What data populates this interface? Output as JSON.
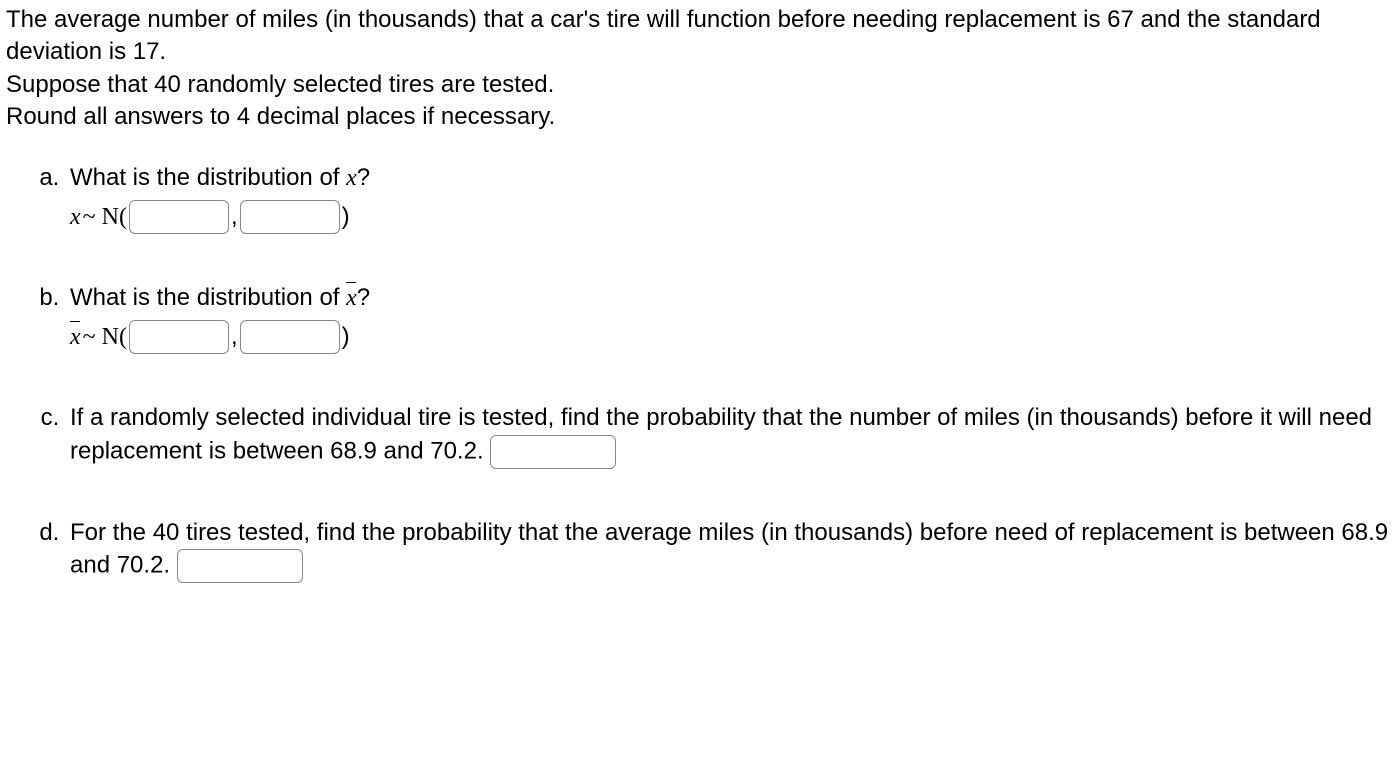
{
  "intro": {
    "line1": "The average number of miles (in thousands) that a car's tire will function before needing replacement is 67 and the standard deviation is 17.",
    "line2": "Suppose that 40 randomly selected tires are tested.",
    "line3": "Round all answers to 4 decimal places if necessary."
  },
  "questions": {
    "a": {
      "prompt_pre": "What is the distribution of ",
      "var": "x",
      "prompt_post": "?",
      "dist_var": "x",
      "dist_sym": " ~ N(",
      "comma": ",",
      "close": ")"
    },
    "b": {
      "prompt_pre": "What is the distribution of ",
      "var": "x",
      "prompt_post": "?",
      "dist_var": "x",
      "dist_sym": " ~ N(",
      "comma": ",",
      "close": ")"
    },
    "c": {
      "text": "If a randomly selected individual tire is tested, find the probability that the number of miles (in thousands) before it will need replacement is between 68.9 and 70.2. "
    },
    "d": {
      "text": "For the 40 tires tested, find the probability that the average miles (in thousands) before need of replacement is between 68.9 and 70.2. "
    }
  }
}
